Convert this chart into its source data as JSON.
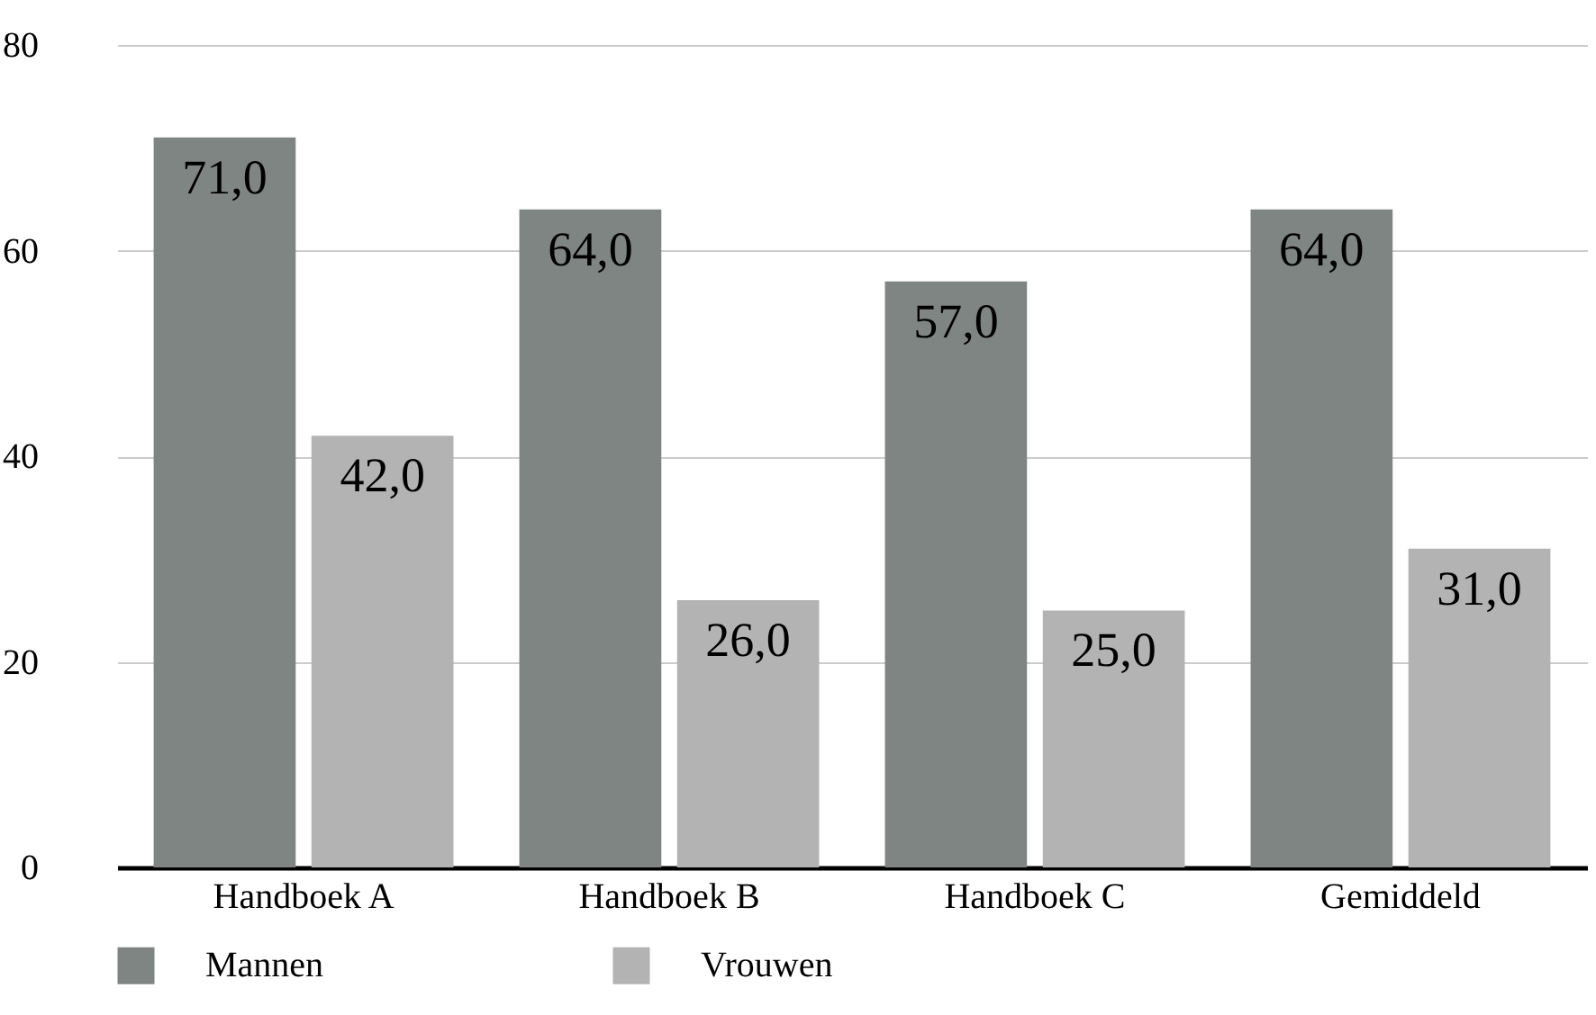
{
  "chart_data": {
    "type": "bar",
    "categories": [
      "Handboek A",
      "Handboek B",
      "Handboek C",
      "Gemiddeld"
    ],
    "series": [
      {
        "name": "Mannen",
        "color": "#7f8582",
        "values": [
          71,
          64,
          57,
          64
        ],
        "value_labels": [
          "71,0",
          "64,0",
          "57,0",
          "64,0"
        ]
      },
      {
        "name": "Vrouwen",
        "color": "#b3b3b3",
        "values": [
          42,
          26,
          25,
          31
        ],
        "value_labels": [
          "42,0",
          "26,0",
          "25,0",
          "31,0"
        ]
      }
    ],
    "ylim": [
      0,
      80
    ],
    "yticks": [
      0,
      20,
      40,
      60,
      80
    ],
    "grid": "y",
    "legend": "bottom"
  }
}
